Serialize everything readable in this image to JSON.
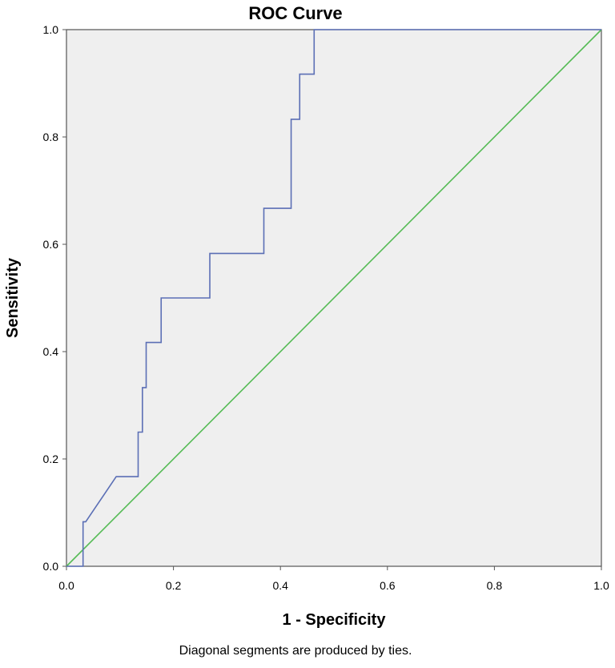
{
  "chart_data": {
    "type": "line",
    "title": "ROC Curve",
    "xlabel": "1 - Specificity",
    "ylabel": "Sensitivity",
    "xlim": [
      0.0,
      1.0
    ],
    "ylim": [
      0.0,
      1.0
    ],
    "xticks": [
      "0.0",
      "0.2",
      "0.4",
      "0.6",
      "0.8",
      "1.0"
    ],
    "yticks": [
      "0.0",
      "0.2",
      "0.4",
      "0.6",
      "0.8",
      "1.0"
    ],
    "grid": false,
    "footnote": "Diagonal segments are produced by ties.",
    "series": [
      {
        "color": "#5b6fb5",
        "x": [
          0.0,
          0.031,
          0.031,
          0.036,
          0.093,
          0.134,
          0.134,
          0.142,
          0.142,
          0.149,
          0.149,
          0.177,
          0.177,
          0.268,
          0.268,
          0.369,
          0.369,
          0.42,
          0.42,
          0.436,
          0.436,
          0.463,
          0.463,
          1.0
        ],
        "y": [
          0.0,
          0.0,
          0.083,
          0.083,
          0.167,
          0.167,
          0.25,
          0.25,
          0.333,
          0.333,
          0.417,
          0.417,
          0.5,
          0.5,
          0.583,
          0.583,
          0.667,
          0.667,
          0.833,
          0.833,
          0.917,
          0.917,
          1.0,
          1.0
        ]
      },
      {
        "color": "#55bb55",
        "x": [
          0.0,
          1.0
        ],
        "y": [
          0.0,
          1.0
        ]
      }
    ]
  },
  "colors": {
    "plot_background": "#efefef",
    "plot_border": "#555555"
  }
}
